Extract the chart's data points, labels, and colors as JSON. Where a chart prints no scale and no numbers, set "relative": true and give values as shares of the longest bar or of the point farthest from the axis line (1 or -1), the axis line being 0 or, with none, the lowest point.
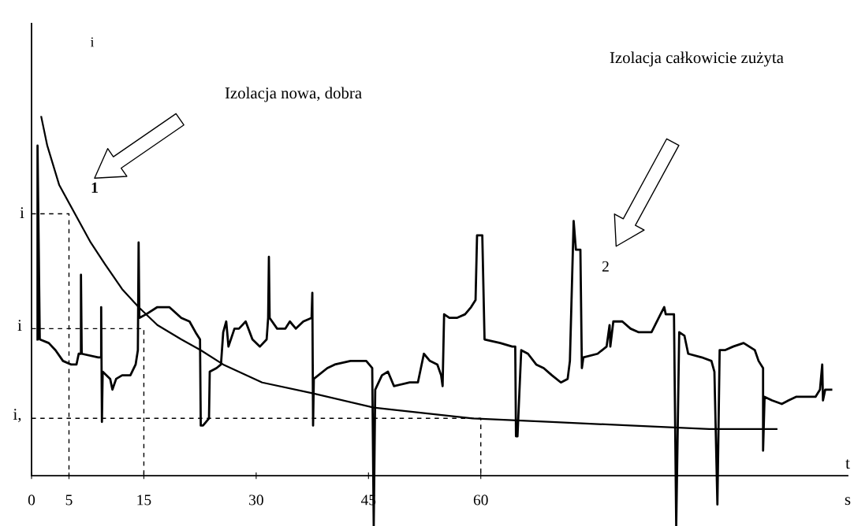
{
  "chart_data": {
    "type": "line",
    "relative": true,
    "xlabel": "t",
    "ylabel": "i",
    "xlim": [
      0,
      109
    ],
    "xticks": [
      0,
      5,
      15,
      30,
      45,
      60
    ],
    "annotations": [
      "Izolacja nowa, dobra",
      "Izolacja całkowicie zużyta",
      "s",
      "i",
      "i",
      "i,"
    ],
    "series": [
      {
        "name": "1",
        "color": "#000000",
        "x": [
          1.3,
          2.1,
          3.7,
          5.8,
          7.9,
          9.8,
          12.1,
          14.3,
          16.8,
          20.0,
          22.6,
          25.6,
          30.8,
          37.5,
          45.7,
          50.0,
          58.9,
          69.5,
          80.0,
          90.5,
          99.5
        ],
        "values": [
          1.0,
          0.92,
          0.81,
          0.73,
          0.65,
          0.59,
          0.52,
          0.47,
          0.42,
          0.38,
          0.35,
          0.31,
          0.26,
          0.23,
          0.19,
          0.18,
          0.16,
          0.15,
          0.14,
          0.13,
          0.13
        ]
      },
      {
        "name": "2",
        "color": "#000000",
        "x": [
          0.8,
          0.8,
          1.1,
          2.3,
          3.2,
          4.2,
          5.3,
          6.0,
          6.3,
          6.6,
          6.6,
          6.7,
          8.9,
          9.3,
          9.3,
          9.4,
          9.5,
          10.5,
          10.8,
          11.3,
          12.1,
          13.2,
          13.9,
          14.2,
          14.3,
          14.4,
          15.3,
          16.8,
          18.4,
          20.0,
          21.1,
          21.9,
          22.5,
          22.6,
          22.9,
          23.7,
          23.8,
          24.7,
          25.3,
          25.6,
          26.0,
          26.3,
          27.1,
          27.7,
          28.6,
          29.5,
          30.5,
          31.4,
          31.6,
          31.7,
          31.8,
          32.8,
          33.9,
          34.5,
          35.3,
          36.3,
          37.4,
          37.5,
          37.6,
          37.7,
          39.5,
          40.5,
          42.6,
          44.7,
          45.5,
          45.7,
          45.9,
          46.8,
          47.6,
          48.4,
          50.5,
          51.6,
          52.4,
          53.2,
          54.2,
          54.7,
          54.9,
          55.1,
          55.8,
          56.8,
          57.9,
          58.7,
          59.3,
          59.5,
          60.2,
          60.5,
          62.6,
          64.2,
          64.6,
          64.7,
          64.9,
          65.4,
          66.3,
          67.4,
          68.4,
          69.5,
          70.7,
          71.6,
          71.9,
          72.4,
          72.7,
          73.3,
          73.5,
          73.7,
          75.6,
          76.8,
          77.2,
          77.3,
          77.7,
          78.9,
          80.0,
          81.1,
          82.8,
          84.0,
          84.5,
          84.7,
          85.8,
          86.1,
          86.5,
          87.2,
          87.7,
          89.5,
          90.8,
          91.2,
          91.6,
          91.9,
          92.6,
          93.7,
          95.1,
          96.6,
          97.1,
          97.7,
          97.7,
          97.9,
          98.9,
          100.2,
          101.1,
          102.1,
          103.2,
          104.7,
          105.3,
          105.6,
          105.7,
          106.0,
          106.8
        ],
        "values": [
          0.38,
          0.92,
          0.38,
          0.37,
          0.35,
          0.32,
          0.31,
          0.31,
          0.34,
          0.34,
          0.56,
          0.34,
          0.33,
          0.33,
          0.47,
          0.15,
          0.29,
          0.27,
          0.24,
          0.27,
          0.28,
          0.28,
          0.31,
          0.35,
          0.65,
          0.44,
          0.45,
          0.47,
          0.47,
          0.44,
          0.43,
          0.4,
          0.38,
          0.14,
          0.14,
          0.16,
          0.29,
          0.3,
          0.31,
          0.4,
          0.43,
          0.36,
          0.41,
          0.41,
          0.43,
          0.38,
          0.36,
          0.38,
          0.44,
          0.61,
          0.44,
          0.41,
          0.41,
          0.43,
          0.41,
          0.43,
          0.44,
          0.51,
          0.14,
          0.27,
          0.3,
          0.31,
          0.32,
          0.32,
          0.3,
          -0.14,
          0.24,
          0.28,
          0.29,
          0.25,
          0.26,
          0.26,
          0.34,
          0.32,
          0.31,
          0.28,
          0.25,
          0.45,
          0.44,
          0.44,
          0.45,
          0.47,
          0.49,
          0.67,
          0.67,
          0.38,
          0.37,
          0.36,
          0.36,
          0.11,
          0.11,
          0.35,
          0.34,
          0.31,
          0.3,
          0.28,
          0.26,
          0.27,
          0.32,
          0.71,
          0.63,
          0.63,
          0.3,
          0.33,
          0.34,
          0.36,
          0.42,
          0.36,
          0.43,
          0.43,
          0.41,
          0.4,
          0.4,
          0.45,
          0.47,
          0.45,
          0.45,
          -0.14,
          0.4,
          0.39,
          0.34,
          0.33,
          0.32,
          0.29,
          -0.08,
          0.35,
          0.35,
          0.36,
          0.37,
          0.35,
          0.32,
          0.3,
          0.07,
          0.22,
          0.21,
          0.2,
          0.21,
          0.22,
          0.22,
          0.22,
          0.24,
          0.31,
          0.21,
          0.24,
          0.24
        ]
      },
      {
        "color": "#000000",
        "line_style": "dashed",
        "x": [
          0,
          5,
          5
        ],
        "values": [
          0.73,
          0.73,
          0
        ]
      },
      {
        "color": "#000000",
        "line_style": "dashed",
        "x": [
          0,
          15,
          15
        ],
        "values": [
          0.41,
          0.41,
          0
        ]
      },
      {
        "color": "#000000",
        "line_style": "dashed",
        "x": [
          0,
          60,
          60
        ],
        "values": [
          0.16,
          0.16,
          0
        ]
      }
    ]
  }
}
